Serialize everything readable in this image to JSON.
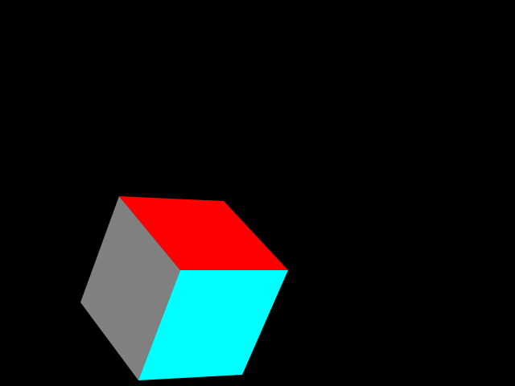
{
  "scene": {
    "background_color": "#000000",
    "object": "cube",
    "faces": {
      "top": {
        "color": "#ff0000"
      },
      "left": {
        "color": "#808080"
      },
      "front": {
        "color": "#00ffff"
      }
    }
  }
}
